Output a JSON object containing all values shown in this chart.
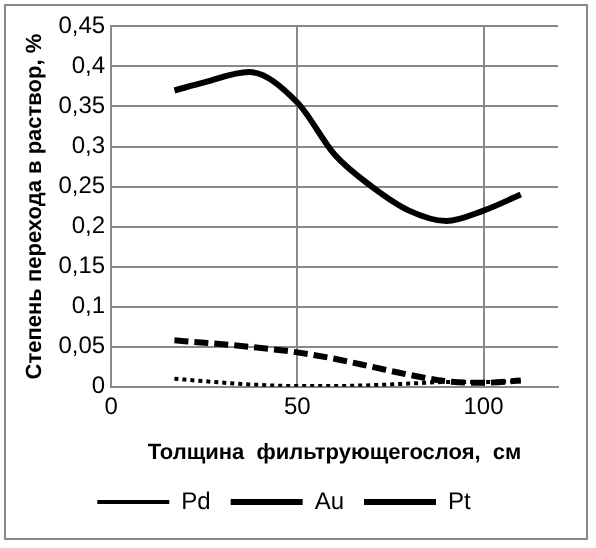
{
  "chart_data": {
    "type": "line",
    "xlabel": "Толщина  фильтрующегослоя,  см",
    "ylabel": "Степень перехода в раствор, %",
    "x": [
      17,
      25,
      37,
      50,
      60,
      70,
      80,
      90,
      100,
      110
    ],
    "series": [
      {
        "name": "Pd",
        "color": "#000000",
        "line_style": "dotted",
        "values": [
          0.01,
          0.007,
          0.003,
          0.001,
          0.001,
          0.002,
          0.004,
          0.006,
          0.006,
          0.007
        ]
      },
      {
        "name": "Au",
        "color": "#000000",
        "line_style": "dashed",
        "values": [
          0.058,
          0.055,
          0.05,
          0.043,
          0.035,
          0.025,
          0.015,
          0.007,
          0.005,
          0.008
        ]
      },
      {
        "name": "Pt",
        "color": "#000000",
        "line_style": "solid",
        "values": [
          0.37,
          0.38,
          0.393,
          0.355,
          0.29,
          0.25,
          0.22,
          0.207,
          0.22,
          0.24
        ]
      }
    ],
    "xlim": [
      0,
      120
    ],
    "xticks": [
      0,
      50,
      100
    ],
    "ylim": [
      0,
      0.45
    ],
    "yticks": [
      0,
      {
        "value": 0.05,
        "label": "0,05"
      },
      {
        "value": 0.1,
        "label": "0,1"
      },
      {
        "value": 0.15,
        "label": "0,15"
      },
      {
        "value": 0.2,
        "label": "0,2"
      },
      {
        "value": 0.25,
        "label": "0,25"
      },
      {
        "value": 0.3,
        "label": "0,3"
      },
      {
        "value": 0.35,
        "label": "0,35"
      },
      {
        "value": 0.4,
        "label": "0,4"
      },
      {
        "value": 0.45,
        "label": "0,45"
      }
    ],
    "grid": true,
    "legend": "bottom",
    "marker": "none"
  }
}
